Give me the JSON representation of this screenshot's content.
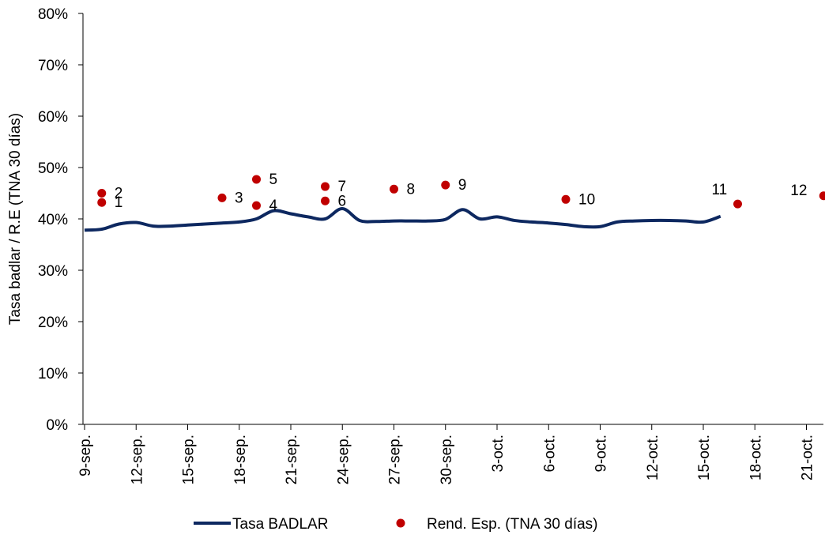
{
  "chart_data": {
    "type": "line",
    "ylabel": "Tasa badlar / R.E (TNA 30 días)",
    "ylim": [
      0,
      80
    ],
    "y_ticks": [
      "0%",
      "10%",
      "20%",
      "30%",
      "40%",
      "50%",
      "60%",
      "70%",
      "80%"
    ],
    "x_ticks": [
      "9-sep.",
      "12-sep.",
      "15-sep.",
      "18-sep.",
      "21-sep.",
      "24-sep.",
      "27-sep.",
      "30-sep.",
      "3-oct.",
      "6-oct.",
      "9-oct.",
      "12-oct.",
      "15-oct.",
      "18-oct.",
      "21-oct."
    ],
    "grid": false,
    "legend_position": "bottom",
    "series": [
      {
        "name": "Tasa BADLAR",
        "kind": "line",
        "color": "#0d2860",
        "x": [
          "9-sep.",
          "10-sep.",
          "11-sep.",
          "12-sep.",
          "13-sep.",
          "14-sep.",
          "15-sep.",
          "16-sep.",
          "17-sep.",
          "18-sep.",
          "19-sep.",
          "20-sep.",
          "21-sep.",
          "22-sep.",
          "23-sep.",
          "24-sep.",
          "25-sep.",
          "26-sep.",
          "27-sep.",
          "28-sep.",
          "29-sep.",
          "30-sep.",
          "1-oct.",
          "2-oct.",
          "3-oct.",
          "4-oct.",
          "5-oct.",
          "6-oct.",
          "7-oct.",
          "8-oct.",
          "9-oct.",
          "10-oct.",
          "11-oct.",
          "12-oct.",
          "13-oct.",
          "14-oct.",
          "15-oct.",
          "16-oct."
        ],
        "values": [
          37.8,
          38.0,
          39.0,
          39.3,
          38.6,
          38.6,
          38.8,
          39.0,
          39.2,
          39.4,
          40.0,
          41.6,
          41.0,
          40.4,
          40.0,
          42.0,
          39.7,
          39.5,
          39.6,
          39.6,
          39.6,
          39.9,
          41.8,
          40.0,
          40.4,
          39.7,
          39.4,
          39.2,
          38.9,
          38.5,
          38.5,
          39.4,
          39.6,
          39.7,
          39.7,
          39.6,
          39.4,
          40.5
        ]
      },
      {
        "name": "Rend. Esp. (TNA 30 días)",
        "kind": "scatter",
        "color": "#c00000",
        "points": [
          {
            "label": "1",
            "x": "10-sep.",
            "y": 43.2
          },
          {
            "label": "2",
            "x": "10-sep.",
            "y": 45.0
          },
          {
            "label": "3",
            "x": "17-sep.",
            "y": 44.1
          },
          {
            "label": "4",
            "x": "19-sep.",
            "y": 42.6
          },
          {
            "label": "5",
            "x": "19-sep.",
            "y": 47.7
          },
          {
            "label": "6",
            "x": "23-sep.",
            "y": 43.5
          },
          {
            "label": "7",
            "x": "23-sep.",
            "y": 46.3
          },
          {
            "label": "8",
            "x": "27-sep.",
            "y": 45.8
          },
          {
            "label": "9",
            "x": "30-sep.",
            "y": 46.6
          },
          {
            "label": "10",
            "x": "7-oct.",
            "y": 43.8
          },
          {
            "label": "11",
            "x": "17-oct.",
            "y": 42.9
          },
          {
            "label": "12",
            "x": "22-oct.",
            "y": 44.5
          }
        ]
      }
    ]
  }
}
